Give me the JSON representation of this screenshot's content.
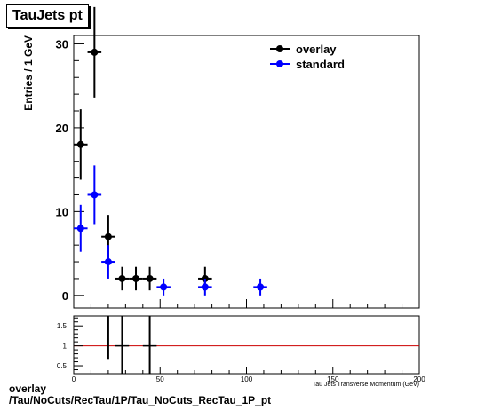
{
  "title": "TauJets pt",
  "footer": {
    "line1": "overlay",
    "line2": "/Tau/NoCuts/RecTau/1P/Tau_NoCuts_RecTau_1P_pt"
  },
  "chart_data": [
    {
      "type": "scatter",
      "title": "TauJets pt",
      "xlabel": "Tau Jets Transverse Momentum (GeV)",
      "ylabel": "Entries / 1 GeV",
      "xlim": [
        0,
        200
      ],
      "ylim": [
        -1.5,
        31
      ],
      "yticks": [
        0,
        10,
        20,
        30
      ],
      "legend": "top-right",
      "series": [
        {
          "name": "overlay",
          "color": "#000000",
          "points": [
            {
              "x": 4,
              "y": 18,
              "xerr": 4,
              "yerr": 4.2
            },
            {
              "x": 12,
              "y": 29,
              "xerr": 4,
              "yerr": 5.4
            },
            {
              "x": 20,
              "y": 7,
              "xerr": 4,
              "yerr": 2.6
            },
            {
              "x": 28,
              "y": 2,
              "xerr": 4,
              "yerr": 1.4
            },
            {
              "x": 36,
              "y": 2,
              "xerr": 4,
              "yerr": 1.4
            },
            {
              "x": 44,
              "y": 2,
              "xerr": 4,
              "yerr": 1.4
            },
            {
              "x": 76,
              "y": 2,
              "xerr": 4,
              "yerr": 1.4
            }
          ]
        },
        {
          "name": "standard",
          "color": "#0000ff",
          "points": [
            {
              "x": 4,
              "y": 8,
              "xerr": 4,
              "yerr": 2.8
            },
            {
              "x": 12,
              "y": 12,
              "xerr": 4,
              "yerr": 3.5
            },
            {
              "x": 20,
              "y": 4,
              "xerr": 4,
              "yerr": 2.0
            },
            {
              "x": 52,
              "y": 1,
              "xerr": 4,
              "yerr": 1.0
            },
            {
              "x": 76,
              "y": 1,
              "xerr": 4,
              "yerr": 1.0
            },
            {
              "x": 108,
              "y": 1,
              "xerr": 4,
              "yerr": 1.0
            }
          ]
        }
      ]
    },
    {
      "type": "scatter",
      "title": "",
      "xlabel": "Tau Jets Transverse Momentum (GeV)",
      "ylabel": "",
      "xlim": [
        0,
        200
      ],
      "ylim": [
        0.3,
        1.75
      ],
      "yticks": [
        0.5,
        1,
        1.5
      ],
      "xticks": [
        0,
        50,
        100,
        150,
        200
      ],
      "reference_line": {
        "y": 1,
        "color": "#cc0000"
      },
      "series": [
        {
          "name": "",
          "color": "#000000",
          "points": [
            {
              "x": 20,
              "y": 1.75,
              "xerr": 4,
              "yerr": 1.1
            },
            {
              "x": 28,
              "y": 1.0,
              "xerr": 4,
              "yerr": 1.4
            },
            {
              "x": 44,
              "y": 1.0,
              "xerr": 4,
              "yerr": 1.4
            }
          ]
        }
      ]
    }
  ]
}
